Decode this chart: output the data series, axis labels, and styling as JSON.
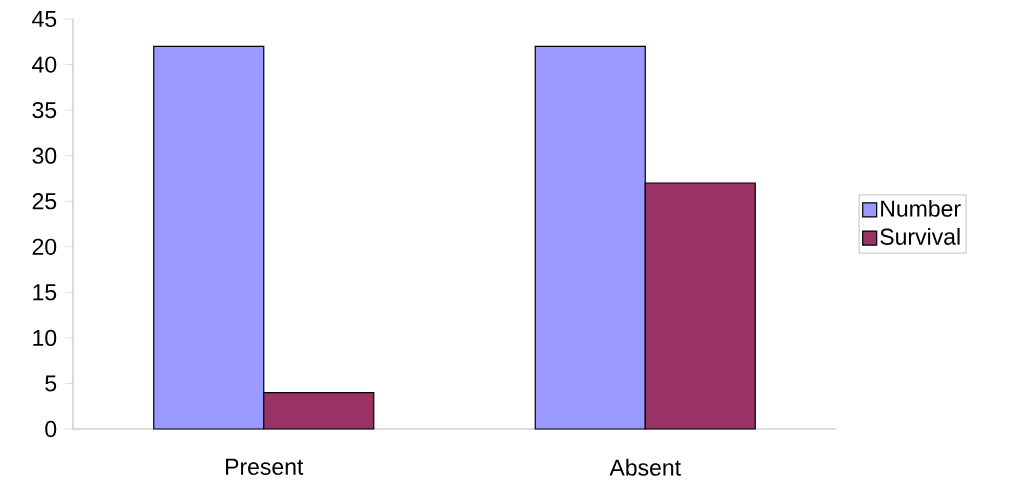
{
  "chart_data": {
    "type": "bar",
    "categories": [
      "Present",
      "Absent"
    ],
    "series": [
      {
        "name": "Number",
        "color": "#9999ff",
        "values": [
          42,
          42
        ]
      },
      {
        "name": "Survival",
        "color": "#993366",
        "values": [
          4,
          27
        ]
      }
    ],
    "ylim": [
      0,
      45
    ],
    "yticks": [
      0,
      5,
      10,
      15,
      20,
      25,
      30,
      35,
      40,
      45
    ],
    "legend": "right"
  }
}
